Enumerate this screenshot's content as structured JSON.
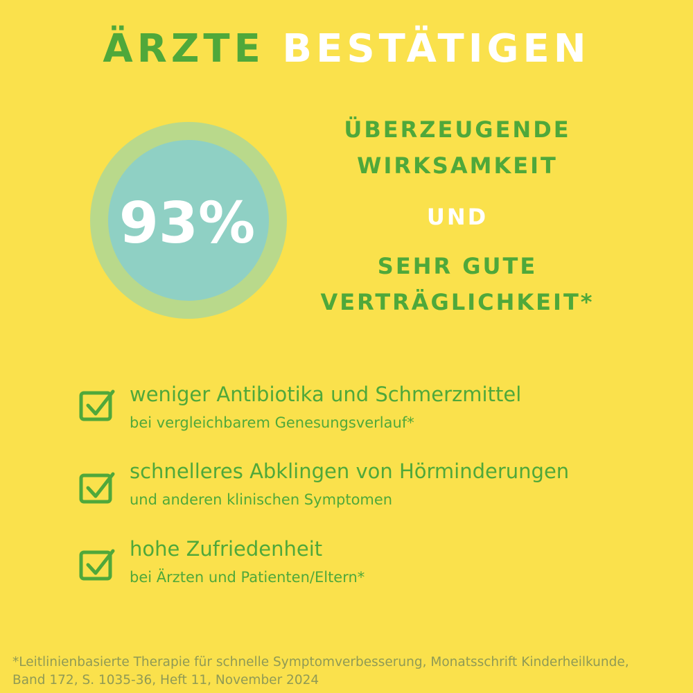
{
  "header": {
    "title_part1": "ÄRZTE",
    "title_part2": "BESTÄTIGEN"
  },
  "stat": {
    "value": "93%"
  },
  "claims": {
    "line1": "ÜBERZEUGENDE",
    "line2": "WIRKSAMKEIT",
    "connector": "UND",
    "line3": "SEHR GUTE",
    "line4": "VERTRÄGLICHKEIT*"
  },
  "benefits": [
    {
      "main": "weniger Antibiotika und Schmerzmittel",
      "sub": "bei vergleichbarem Genesungsverlauf*"
    },
    {
      "main": "schnelleres Abklingen von Hörminderungen",
      "sub": "und anderen klinischen Symptomen"
    },
    {
      "main": "hohe Zufriedenheit",
      "sub": "bei Ärzten und Patienten/Eltern*"
    }
  ],
  "footnote": {
    "line1": "*Leitlinienbasierte Therapie für schnelle Symptomverbesserung, Monatsschrift Kinderheilkunde,",
    "line2": "Band 172, S. 1035-36, Heft 11, November 2024"
  }
}
